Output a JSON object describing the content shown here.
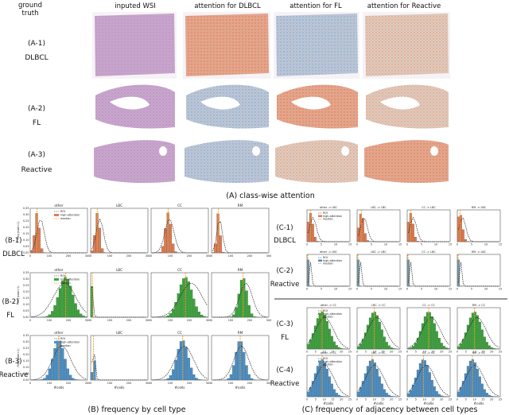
{
  "section_a": {
    "caption": "(A) class-wise attention",
    "column_headers": [
      "ground\ntruth",
      "inputed WSI",
      "attention for DLBCL",
      "attention for FL",
      "attention for Reactive"
    ],
    "rows": [
      {
        "id": "(A-1)",
        "class": "DLBCL"
      },
      {
        "id": "(A-2)",
        "class": "FL"
      },
      {
        "id": "(A-3)",
        "class": "Reactive"
      }
    ]
  },
  "section_b": {
    "caption": "(B) frequency by cell type",
    "cell_types": [
      "other",
      "LBC",
      "CC",
      "RM"
    ],
    "row_labels": [
      {
        "id": "(B-1)",
        "class": "DLBCL"
      },
      {
        "id": "(B-2)",
        "class": "FL"
      },
      {
        "id": "(B-3)",
        "class": "Reactive"
      }
    ],
    "y_label": "Freq (sum=1)",
    "y_ticks": [
      "0.00",
      "0.05",
      "0.10",
      "0.15",
      "0.20",
      "0.25",
      "0.30",
      "0.35"
    ],
    "x_ticks": [
      "0",
      "100",
      "200",
      "300"
    ],
    "x_label": "#cells",
    "legend": [
      "ROI",
      "high-attention",
      "median"
    ],
    "colors": {
      "DLBCL": "#e07b53",
      "FL": "#3aa53a",
      "Reactive": "#4a90c8",
      "median": "#f0a020",
      "roi": "#222222"
    }
  },
  "section_c": {
    "caption": "(C) frequency of adjacency between cell types",
    "row_labels": [
      {
        "id": "(C-1)",
        "class": "DLBCL"
      },
      {
        "id": "(C-2)",
        "class": "Reactive"
      },
      {
        "id": "(C-3)",
        "class": "FL"
      },
      {
        "id": "(C-4)",
        "class": "Reactive"
      }
    ],
    "top_titles": [
      "other -> LBC",
      "LBC -> LBC",
      "CC -> LBC",
      "RM -> LBC"
    ],
    "bottom_titles": [
      "other -> CC",
      "LBC -> CC",
      "CC -> CC",
      "RM -> CC"
    ],
    "x_ticks_top": [
      "0",
      "5",
      "10",
      "15"
    ],
    "x_ticks_bottom": [
      "0",
      "5",
      "10",
      "15",
      "20",
      "25"
    ],
    "x_label": "#cells",
    "legend": [
      "ROI",
      "high-attention",
      "median"
    ]
  }
}
